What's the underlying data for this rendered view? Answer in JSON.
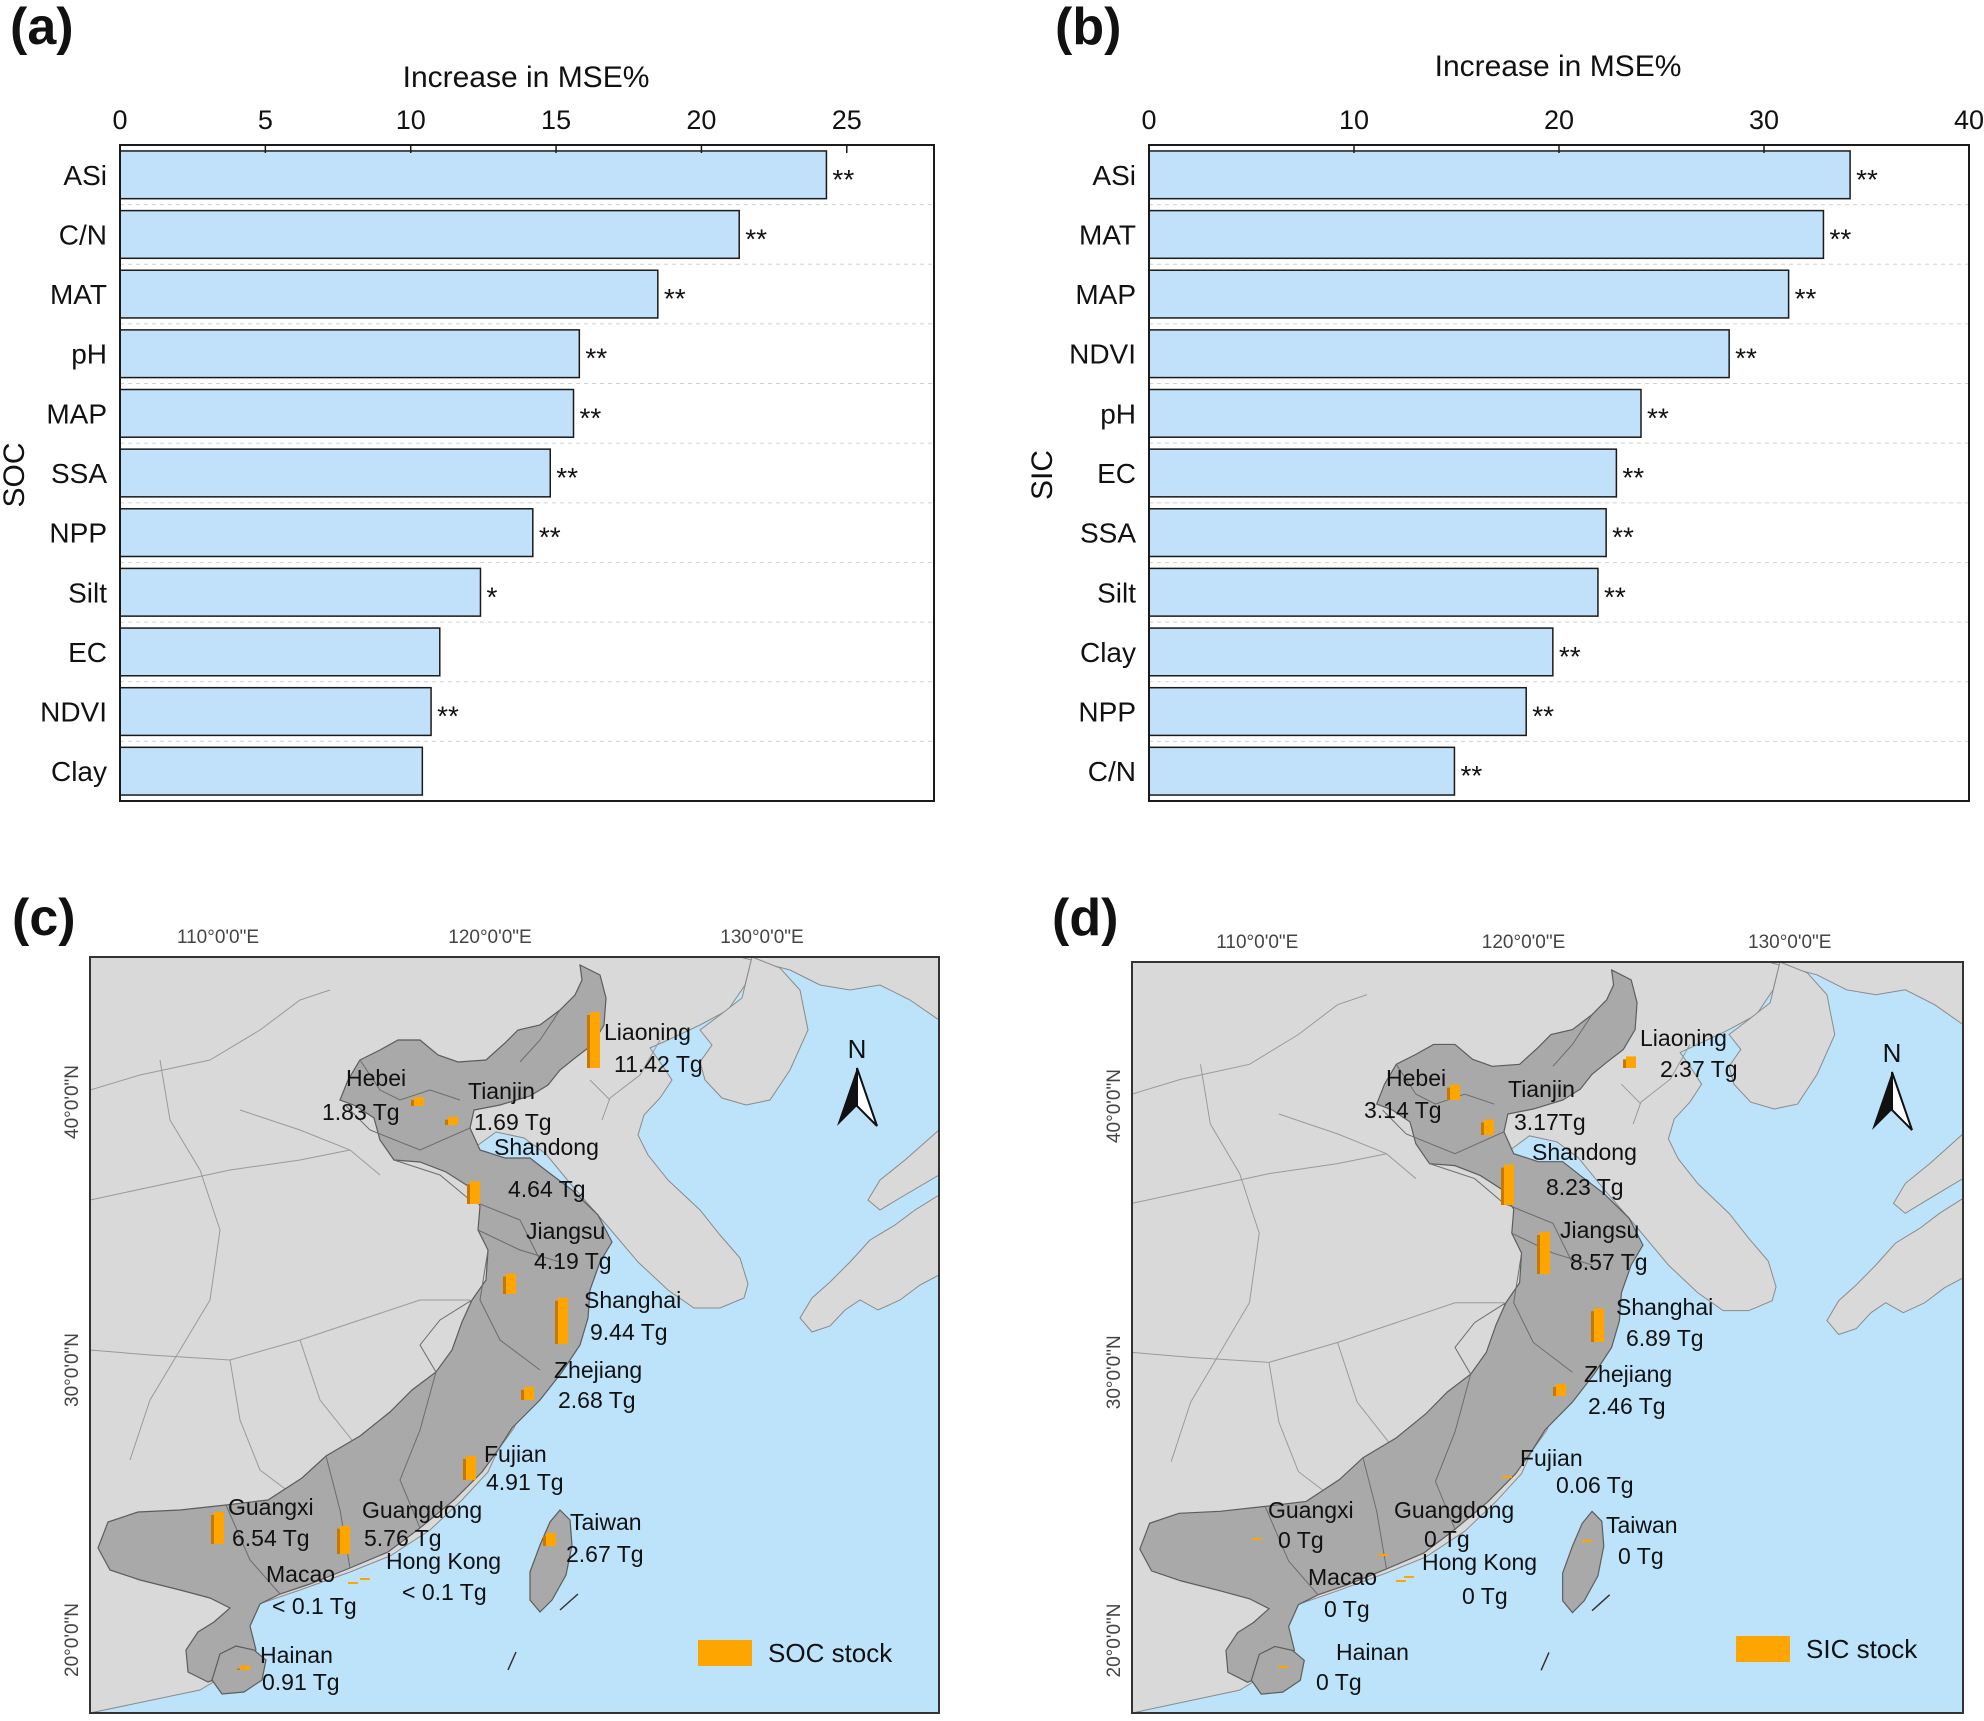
{
  "panels": {
    "a": "(a)",
    "b": "(b)",
    "c": "(c)",
    "d": "(d)"
  },
  "colors": {
    "bar_fill": "#c1e0fa",
    "bar_stroke": "#1a1a1a",
    "sea": "#bde3fa",
    "land_other": "#d9d9d9",
    "province": "#a9a9a9",
    "stock_bar": "#ffa500",
    "stock_bar_shade": "#c77800"
  },
  "chart_data": [
    {
      "type": "bar",
      "orientation": "horizontal",
      "panel": "(a)",
      "title": "Increase in MSE%",
      "xlabel": "Increase in MSE%",
      "ylabel": "SOC",
      "xlim": [
        0,
        28
      ],
      "xticks": [
        "0",
        "5",
        "10",
        "15",
        "20",
        "25"
      ],
      "xtick_values": [
        0,
        5,
        10,
        15,
        20,
        25
      ],
      "categories": [
        "ASi",
        "C/N",
        "MAT",
        "pH",
        "MAP",
        "SSA",
        "NPP",
        "Silt",
        "EC",
        "NDVI",
        "Clay"
      ],
      "values": [
        24.3,
        21.3,
        18.5,
        15.8,
        15.6,
        14.8,
        14.2,
        12.4,
        11.0,
        10.7,
        10.4
      ],
      "significance": [
        "**",
        "**",
        "**",
        "**",
        "**",
        "**",
        "**",
        "*",
        "",
        "**",
        ""
      ],
      "grid": "horizontal dashed"
    },
    {
      "type": "bar",
      "orientation": "horizontal",
      "panel": "(b)",
      "title": "Increase in MSE%",
      "xlabel": "Increase in MSE%",
      "ylabel": "SIC",
      "xlim": [
        0,
        40
      ],
      "xticks": [
        "0",
        "10",
        "20",
        "30",
        "40"
      ],
      "xtick_values": [
        0,
        10,
        20,
        30,
        40
      ],
      "categories": [
        "ASi",
        "MAT",
        "MAP",
        "NDVI",
        "pH",
        "EC",
        "SSA",
        "Silt",
        "Clay",
        "NPP",
        "C/N"
      ],
      "values": [
        34.2,
        32.9,
        31.2,
        28.3,
        24.0,
        22.8,
        22.3,
        21.9,
        19.7,
        18.4,
        14.9
      ],
      "significance": [
        "**",
        "**",
        "**",
        "**",
        "**",
        "**",
        "**",
        "**",
        "**",
        "**",
        "**"
      ],
      "grid": "horizontal dashed"
    },
    {
      "type": "map",
      "panel": "(c)",
      "legend": "SOC stock",
      "lon_labels": [
        "110°0'0\"E",
        "120°0'0\"E",
        "130°0'0\"E"
      ],
      "lat_labels": [
        "40°0'0\"N",
        "30°0'0\"N",
        "20°0'0\"N"
      ],
      "north": "N",
      "provinces": [
        {
          "name": "Liaoning",
          "value": "11.42 Tg",
          "stock": 11.42
        },
        {
          "name": "Hebei",
          "value": "1.83 Tg",
          "stock": 1.83
        },
        {
          "name": "Tianjin",
          "value": "1.69 Tg",
          "stock": 1.69
        },
        {
          "name": "Shandong",
          "value": "4.64 Tg",
          "stock": 4.64
        },
        {
          "name": "Jiangsu",
          "value": "4.19 Tg",
          "stock": 4.19
        },
        {
          "name": "Shanghai",
          "value": "9.44 Tg",
          "stock": 9.44
        },
        {
          "name": "Zhejiang",
          "value": "2.68 Tg",
          "stock": 2.68
        },
        {
          "name": "Fujian",
          "value": "4.91 Tg",
          "stock": 4.91
        },
        {
          "name": "Guangxi",
          "value": "6.54 Tg",
          "stock": 6.54
        },
        {
          "name": "Guangdong",
          "value": "5.76 Tg",
          "stock": 5.76
        },
        {
          "name": "Taiwan",
          "value": "2.67 Tg",
          "stock": 2.67
        },
        {
          "name": "Macao",
          "value": "< 0.1 Tg",
          "stock": 0.05
        },
        {
          "name": "Hong Kong",
          "value": "< 0.1 Tg",
          "stock": 0.05
        },
        {
          "name": "Hainan",
          "value": "0.91 Tg",
          "stock": 0.91
        }
      ]
    },
    {
      "type": "map",
      "panel": "(d)",
      "legend": "SIC stock",
      "lon_labels": [
        "110°0'0\"E",
        "120°0'0\"E",
        "130°0'0\"E"
      ],
      "lat_labels": [
        "40°0'0\"N",
        "30°0'0\"N",
        "20°0'0\"N"
      ],
      "north": "N",
      "provinces": [
        {
          "name": "Liaoning",
          "value": "2.37 Tg",
          "stock": 2.37
        },
        {
          "name": "Hebei",
          "value": "3.14 Tg",
          "stock": 3.14
        },
        {
          "name": "Tianjin",
          "value": "3.17Tg",
          "stock": 3.17
        },
        {
          "name": "Shandong",
          "value": "8.23 Tg",
          "stock": 8.23
        },
        {
          "name": "Jiangsu",
          "value": "8.57 Tg",
          "stock": 8.57
        },
        {
          "name": "Shanghai",
          "value": "6.89 Tg",
          "stock": 6.89
        },
        {
          "name": "Zhejiang",
          "value": "2.46 Tg",
          "stock": 2.46
        },
        {
          "name": "Fujian",
          "value": "0.06 Tg",
          "stock": 0.06
        },
        {
          "name": "Guangxi",
          "value": "0 Tg",
          "stock": 0
        },
        {
          "name": "Guangdong",
          "value": "0 Tg",
          "stock": 0
        },
        {
          "name": "Taiwan",
          "value": "0 Tg",
          "stock": 0
        },
        {
          "name": "Macao",
          "value": "0 Tg",
          "stock": 0
        },
        {
          "name": "Hong Kong",
          "value": "0 Tg",
          "stock": 0
        },
        {
          "name": "Hainan",
          "value": "0 Tg",
          "stock": 0
        }
      ]
    }
  ]
}
